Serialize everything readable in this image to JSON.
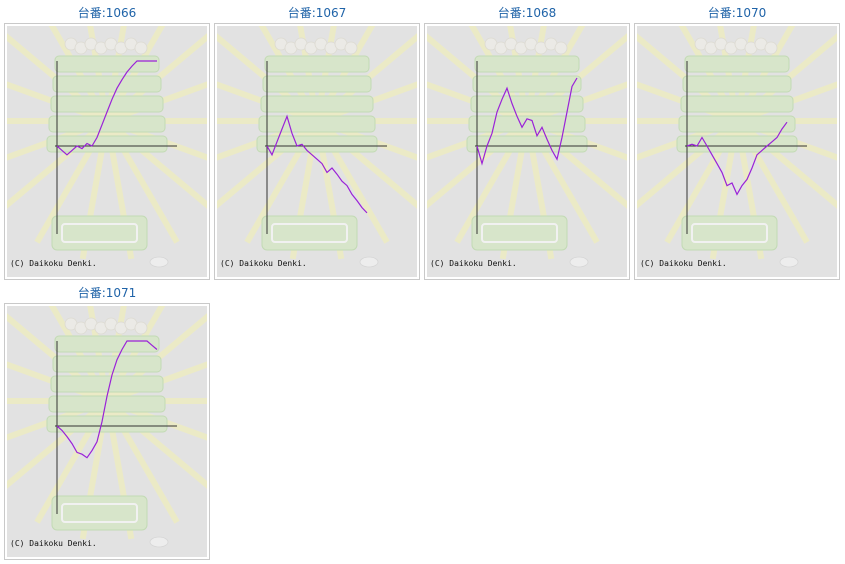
{
  "colors": {
    "title": "#1f63a8",
    "line": "#9a22d8",
    "axis": "#333333",
    "panel_bg": "#e2e2e2"
  },
  "copyright": "(C) Daikoku Denki.",
  "cards": [
    {
      "title": "台番:1066"
    },
    {
      "title": "台番:1067"
    },
    {
      "title": "台番:1068"
    },
    {
      "title": "台番:1070"
    },
    {
      "title": "台番:1071"
    }
  ],
  "chart_data": [
    {
      "type": "line",
      "title": "台番:1066",
      "ylim": [
        -1,
        1
      ],
      "x": [
        0,
        1,
        2,
        3,
        4,
        5,
        6,
        7,
        8,
        9,
        10,
        11,
        12,
        13,
        14,
        15,
        16,
        17,
        18,
        19,
        20
      ],
      "values": [
        0,
        -0.05,
        -0.1,
        -0.05,
        0.0,
        -0.03,
        0.03,
        0.0,
        0.1,
        0.25,
        0.4,
        0.55,
        0.68,
        0.78,
        0.87,
        0.94,
        1.0,
        1.0,
        1.0,
        1.0,
        1.0
      ]
    },
    {
      "type": "line",
      "title": "台番:1067",
      "ylim": [
        -1,
        1
      ],
      "x": [
        0,
        1,
        2,
        3,
        4,
        5,
        6,
        7,
        8,
        9,
        10,
        11,
        12,
        13,
        14,
        15,
        16,
        17,
        18,
        19,
        20
      ],
      "values": [
        0,
        -0.1,
        0.05,
        0.2,
        0.35,
        0.15,
        0.0,
        0.02,
        -0.05,
        -0.1,
        -0.15,
        -0.2,
        -0.3,
        -0.25,
        -0.32,
        -0.4,
        -0.45,
        -0.55,
        -0.62,
        -0.7,
        -0.76
      ]
    },
    {
      "type": "line",
      "title": "台番:1068",
      "ylim": [
        -1,
        1
      ],
      "x": [
        0,
        1,
        2,
        3,
        4,
        5,
        6,
        7,
        8,
        9,
        10,
        11,
        12,
        13,
        14,
        15,
        16,
        17,
        18,
        19,
        20
      ],
      "values": [
        0,
        -0.2,
        0.0,
        0.15,
        0.4,
        0.55,
        0.68,
        0.5,
        0.35,
        0.22,
        0.32,
        0.3,
        0.12,
        0.22,
        0.08,
        -0.05,
        -0.15,
        0.1,
        0.4,
        0.7,
        0.8
      ]
    },
    {
      "type": "line",
      "title": "台番:1070",
      "ylim": [
        -1,
        1
      ],
      "x": [
        0,
        1,
        2,
        3,
        4,
        5,
        6,
        7,
        8,
        9,
        10,
        11,
        12,
        13,
        14,
        15,
        16,
        17,
        18,
        19,
        20
      ],
      "values": [
        0,
        0.02,
        0.0,
        0.1,
        0.0,
        -0.1,
        -0.2,
        -0.3,
        -0.45,
        -0.42,
        -0.55,
        -0.45,
        -0.38,
        -0.25,
        -0.1,
        -0.05,
        0.0,
        0.05,
        0.1,
        0.2,
        0.28
      ]
    },
    {
      "type": "line",
      "title": "台番:1071",
      "ylim": [
        -1,
        1
      ],
      "x": [
        0,
        1,
        2,
        3,
        4,
        5,
        6,
        7,
        8,
        9,
        10,
        11,
        12,
        13,
        14,
        15,
        16,
        17,
        18,
        19,
        20
      ],
      "values": [
        0,
        -0.05,
        -0.12,
        -0.2,
        -0.3,
        -0.32,
        -0.36,
        -0.28,
        -0.18,
        0.05,
        0.35,
        0.6,
        0.78,
        0.9,
        1.0,
        1.0,
        1.0,
        1.0,
        1.0,
        0.95,
        0.9
      ]
    }
  ]
}
